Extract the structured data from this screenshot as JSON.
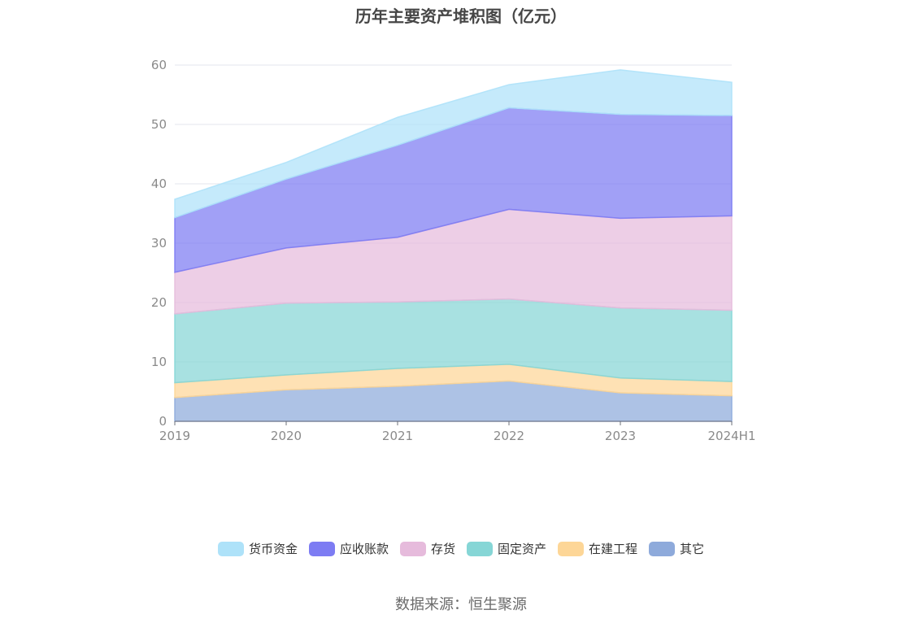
{
  "chart_data": {
    "type": "area",
    "stacked": true,
    "title": "历年主要资产堆积图（亿元）",
    "x": [
      "2019",
      "2020",
      "2021",
      "2022",
      "2023",
      "2024H1"
    ],
    "ylim": [
      0,
      60
    ],
    "yticks": [
      "0",
      "10",
      "20",
      "30",
      "40",
      "50",
      "60"
    ],
    "grid": true,
    "legend_position": "bottom",
    "series": [
      {
        "name": "其它",
        "color": "#8eaadb",
        "values": [
          4.0,
          5.3,
          5.9,
          6.8,
          4.8,
          4.3
        ]
      },
      {
        "name": "在建工程",
        "color": "#fdd697",
        "values": [
          2.5,
          2.5,
          3.0,
          2.8,
          2.5,
          2.4
        ]
      },
      {
        "name": "固定资产",
        "color": "#86d6d6",
        "values": [
          11.6,
          12.1,
          11.2,
          11.0,
          11.8,
          12.0
        ]
      },
      {
        "name": "存货",
        "color": "#e6bbdc",
        "values": [
          7.0,
          9.3,
          10.9,
          15.1,
          15.1,
          15.9
        ]
      },
      {
        "name": "应收账款",
        "color": "#7d7cf3",
        "values": [
          9.2,
          11.6,
          15.5,
          17.1,
          17.5,
          16.9
        ]
      },
      {
        "name": "货币资金",
        "color": "#aee2f9",
        "values": [
          3.1,
          2.8,
          4.7,
          3.9,
          7.5,
          5.6
        ]
      }
    ]
  },
  "legend": {
    "items": [
      {
        "label": "货币资金",
        "color": "#aee2f9"
      },
      {
        "label": "应收账款",
        "color": "#7d7cf3"
      },
      {
        "label": "存货",
        "color": "#e6bbdc"
      },
      {
        "label": "固定资产",
        "color": "#86d6d6"
      },
      {
        "label": "在建工程",
        "color": "#fdd697"
      },
      {
        "label": "其它",
        "color": "#8eaadb"
      }
    ]
  },
  "source": "数据来源：恒生聚源"
}
